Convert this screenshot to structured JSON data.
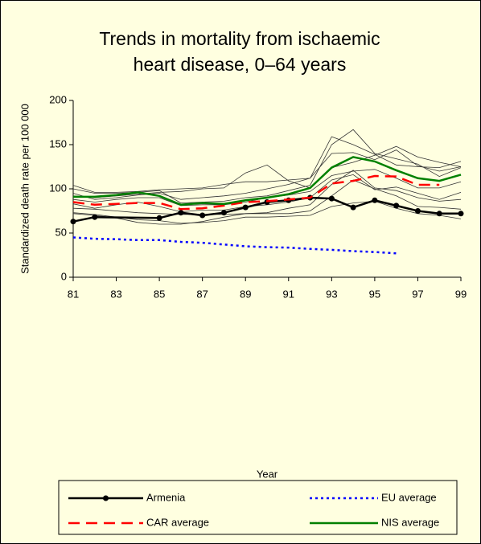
{
  "chart_data": {
    "type": "line",
    "title": [
      "Trends in mortality from ischaemic",
      "heart disease, 0–64 years"
    ],
    "x_label": "Year",
    "y_label": "Standardized death rate per 100 000",
    "xlim": [
      81,
      99
    ],
    "xticks": [
      81,
      83,
      85,
      87,
      89,
      91,
      93,
      95,
      97,
      99
    ],
    "ylim": [
      0,
      200
    ],
    "yticks": [
      0,
      50,
      100,
      150,
      200
    ],
    "series": [
      {
        "color": "#333333",
        "x": [
          81,
          82,
          83,
          84,
          85,
          86,
          87,
          88,
          89,
          90,
          91,
          92,
          93,
          94,
          95,
          96,
          97,
          98,
          99
        ],
        "values": [
          104,
          96,
          96,
          97,
          99,
          100,
          101,
          105,
          108,
          108,
          110,
          112,
          159,
          150,
          139,
          127,
          125,
          124,
          131
        ]
      },
      {
        "color": "#333333",
        "x": [
          81,
          82,
          83,
          84,
          85,
          86,
          87,
          88,
          89,
          90,
          91,
          92,
          93,
          94,
          95,
          96,
          97,
          98,
          99
        ],
        "values": [
          100,
          95,
          95,
          96,
          98,
          84,
          85,
          86,
          90,
          92,
          98,
          104,
          150,
          167,
          140,
          134,
          128,
          114,
          124
        ]
      },
      {
        "color": "#333333",
        "x": [
          81,
          82,
          83,
          84,
          85,
          86,
          87,
          88,
          89,
          90,
          91,
          92,
          93,
          94,
          95,
          96,
          97,
          98,
          99
        ],
        "values": [
          95,
          88,
          90,
          93,
          95,
          88,
          90,
          92,
          95,
          100,
          105,
          112,
          140,
          141,
          133,
          144,
          126,
          120,
          125
        ]
      },
      {
        "color": "#333333",
        "x": [
          81,
          82,
          83,
          84,
          85,
          86,
          87,
          88,
          89,
          90,
          91,
          92,
          93,
          94,
          95,
          96,
          97,
          98,
          99
        ],
        "values": [
          92,
          90,
          92,
          94,
          96,
          97,
          100,
          101,
          118,
          127,
          109,
          101,
          124,
          130,
          138,
          148,
          136,
          130,
          125
        ]
      },
      {
        "color": "#333333",
        "x": [
          81,
          82,
          83,
          84,
          85,
          86,
          87,
          88,
          89,
          90,
          91,
          92,
          93,
          94,
          95,
          96,
          97,
          98,
          99
        ],
        "values": [
          88,
          85,
          88,
          90,
          90,
          81,
          82,
          82,
          85,
          90,
          93,
          97,
          115,
          120,
          122,
          112,
          101,
          101,
          108
        ]
      },
      {
        "color": "#333333",
        "x": [
          81,
          82,
          83,
          84,
          85,
          86,
          87,
          88,
          89,
          90,
          91,
          92,
          93,
          94,
          95,
          96,
          97,
          98,
          99
        ],
        "values": [
          83,
          78,
          82,
          85,
          80,
          74,
          76,
          76,
          80,
          82,
          85,
          90,
          110,
          116,
          99,
          102,
          95,
          88,
          96
        ]
      },
      {
        "color": "#333333",
        "x": [
          81,
          82,
          83,
          84,
          85,
          86,
          87,
          88,
          89,
          90,
          91,
          92,
          93,
          94,
          95,
          96,
          97,
          98,
          99
        ],
        "values": [
          78,
          77,
          75,
          73,
          72,
          71,
          71,
          71,
          72,
          73,
          78,
          82,
          105,
          121,
          101,
          98,
          90,
          86,
          88
        ]
      },
      {
        "color": "#333333",
        "x": [
          81,
          82,
          83,
          84,
          85,
          86,
          87,
          88,
          89,
          90,
          91,
          92,
          93,
          94,
          95,
          96,
          97,
          98,
          99
        ],
        "values": [
          73,
          71,
          68,
          65,
          64,
          61,
          62,
          64,
          68,
          68,
          69,
          70,
          80,
          84,
          86,
          78,
          72,
          70,
          66
        ]
      },
      {
        "color": "#333333",
        "x": [
          81,
          82,
          83,
          84,
          85,
          86,
          87,
          88,
          89,
          90,
          91,
          92,
          93,
          94,
          95,
          96,
          97,
          98,
          99
        ],
        "values": [
          72,
          70,
          67,
          62,
          60,
          60,
          63,
          68,
          72,
          72,
          72,
          75,
          92,
          110,
          100,
          92,
          80,
          79,
          77
        ]
      },
      {
        "name": "Armenia",
        "color": "#000000",
        "style": "solid",
        "marker": "circle",
        "x": [
          81,
          82,
          85,
          86,
          87,
          88,
          89,
          90,
          91,
          92,
          93,
          94,
          95,
          96,
          97,
          98,
          99
        ],
        "values": [
          63,
          68,
          67,
          73,
          70,
          73,
          79,
          85,
          87,
          90,
          89,
          79,
          87,
          81,
          75,
          72,
          72
        ]
      },
      {
        "name": "EU average",
        "color": "#0000ff",
        "style": "dotted",
        "x": [
          81,
          82,
          83,
          84,
          85,
          86,
          87,
          88,
          89,
          90,
          91,
          92,
          93,
          94,
          95,
          96
        ],
        "values": [
          45,
          43.5,
          43,
          42,
          42,
          40,
          39,
          37,
          35,
          34,
          33.5,
          32,
          31,
          29.5,
          28.5,
          27
        ]
      },
      {
        "name": "CAR average",
        "color": "#ff0000",
        "style": "dashed",
        "x": [
          81,
          82,
          83,
          84,
          85,
          86,
          87,
          88,
          89,
          90,
          91,
          92,
          93,
          94,
          95,
          96,
          97,
          98
        ],
        "values": [
          85,
          82,
          83,
          84,
          84,
          77,
          78,
          81,
          85,
          86,
          88,
          90,
          106,
          109,
          114.5,
          114,
          104.5,
          104.5
        ]
      },
      {
        "name": "NIS average",
        "color": "#008000",
        "style": "solid",
        "x": [
          81,
          82,
          83,
          84,
          85,
          86,
          87,
          88,
          89,
          90,
          91,
          92,
          93,
          94,
          95,
          96,
          97,
          98,
          99
        ],
        "values": [
          91,
          91,
          93,
          96,
          92,
          82,
          84,
          83,
          87,
          90,
          94,
          101,
          124,
          136,
          131,
          121,
          112,
          109,
          116
        ]
      }
    ]
  }
}
